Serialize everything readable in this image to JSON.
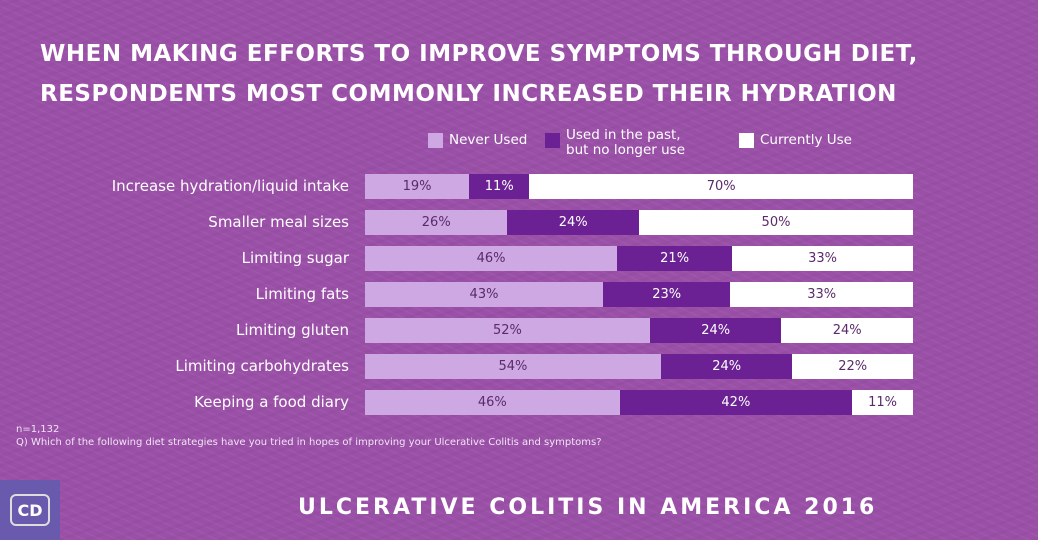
{
  "title_line1": "When making efforts to improve symptoms through diet,",
  "title_line2": "respondents most commonly increased their hydration",
  "chart_data": {
    "type": "bar",
    "stacked": true,
    "orientation": "horizontal",
    "categories": [
      "Increase hydration/liquid intake",
      "Smaller meal sizes",
      "Limiting sugar",
      "Limiting fats",
      "Limiting gluten",
      "Limiting carbohydrates",
      "Keeping a food diary"
    ],
    "series": [
      {
        "name": "Never Used",
        "color": "#cda8e2",
        "values": [
          19,
          26,
          46,
          43,
          52,
          54,
          46
        ]
      },
      {
        "name": "Used in the past, but no longer use",
        "color": "#6b2193",
        "values": [
          11,
          24,
          21,
          23,
          24,
          24,
          42
        ]
      },
      {
        "name": "Currently Use",
        "color": "#ffffff",
        "values": [
          70,
          50,
          33,
          33,
          24,
          22,
          11
        ]
      }
    ],
    "legend_position": "top"
  },
  "legend": {
    "never": "Never Used",
    "past_line1": "Used in the past,",
    "past_line2": "but no longer use",
    "current": "Currently Use"
  },
  "note_n": "n=1,132",
  "note_q": "Q) Which of the following diet strategies have you tried in hopes of improving your Ulcerative Colitis and symptoms?",
  "logo": "CD",
  "footer": "Ulcerative Colitis in America 2016"
}
